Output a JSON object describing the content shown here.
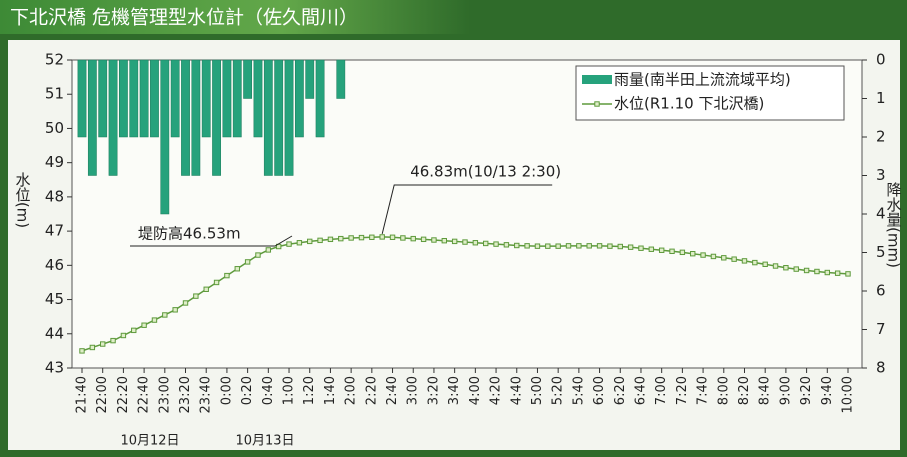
{
  "chart_data": {
    "type": "bar-line",
    "title": "下北沢橋 危機管理型水位計（佐久間川）",
    "y_label": "水位(m)",
    "y2_label": "降水量(mm)",
    "categories": [
      "21:40",
      null,
      "22:00",
      null,
      "22:20",
      null,
      "22:40",
      null,
      "23:00",
      null,
      "23:20",
      null,
      "23:40",
      null,
      "0:00",
      null,
      "0:20",
      null,
      "0:40",
      null,
      "1:00",
      null,
      "1:20",
      null,
      "1:40",
      null,
      "2:00",
      null,
      "2:20",
      null,
      "2:40",
      null,
      "3:00",
      null,
      "3:20",
      null,
      "3:40",
      null,
      "4:00",
      null,
      "4:20",
      null,
      "4:40",
      null,
      "5:00",
      null,
      "5:20",
      null,
      "5:40",
      null,
      "6:00",
      null,
      "6:20",
      null,
      "6:40",
      null,
      "7:00",
      null,
      "7:20",
      null,
      "7:40",
      null,
      "8:00",
      null,
      "8:20",
      null,
      "8:40",
      null,
      "9:00",
      null,
      "9:20",
      null,
      "9:40",
      null,
      "10:00"
    ],
    "date_labels": [
      "10月12日",
      "10月13日"
    ],
    "series": [
      {
        "name": "雨量(南半田上流流域平均)",
        "type": "bar",
        "axis": "y2",
        "color": "#26a27c",
        "values": [
          2,
          3,
          2,
          3,
          2,
          2,
          2,
          2,
          4,
          2,
          3,
          3,
          2,
          3,
          2,
          2,
          1,
          2,
          3,
          3,
          3,
          2,
          1,
          2,
          0,
          1,
          0,
          0,
          0,
          0,
          0,
          0,
          0,
          0,
          0,
          0,
          0,
          0,
          0,
          0,
          0,
          0,
          0,
          0,
          0,
          0,
          0,
          0,
          0,
          0,
          0,
          0,
          0,
          0,
          0,
          0,
          0,
          0,
          0,
          0,
          0,
          0,
          0,
          0,
          0,
          0,
          0,
          0,
          0,
          0,
          0,
          0,
          0,
          0,
          0
        ]
      },
      {
        "name": "水位(R1.10 下北沢橋)",
        "type": "line",
        "color": "#5e9a3c",
        "values": [
          43.5,
          43.6,
          43.7,
          43.8,
          43.95,
          44.1,
          44.25,
          44.4,
          44.55,
          44.7,
          44.9,
          45.1,
          45.3,
          45.5,
          45.7,
          45.9,
          46.1,
          46.3,
          46.45,
          46.55,
          46.62,
          46.66,
          46.7,
          46.73,
          46.76,
          46.78,
          46.8,
          46.81,
          46.82,
          46.83,
          46.82,
          46.8,
          46.78,
          46.76,
          46.74,
          46.72,
          46.7,
          46.68,
          46.66,
          46.64,
          46.62,
          46.6,
          46.58,
          46.57,
          46.56,
          46.56,
          46.56,
          46.57,
          46.57,
          46.57,
          46.57,
          46.56,
          46.55,
          46.53,
          46.5,
          46.47,
          46.44,
          46.41,
          46.38,
          46.34,
          46.3,
          46.26,
          46.22,
          46.18,
          46.13,
          46.08,
          46.03,
          45.98,
          45.93,
          45.89,
          45.85,
          45.82,
          45.79,
          45.77,
          45.75
        ]
      }
    ],
    "ylim": [
      43,
      52
    ],
    "yticks": [
      43,
      44,
      45,
      46,
      47,
      48,
      49,
      50,
      51,
      52
    ],
    "y2lim": [
      0,
      8
    ],
    "y2ticks": [
      0,
      1,
      2,
      3,
      4,
      5,
      6,
      7,
      8
    ],
    "y2_inverted": true,
    "legend": "upper right",
    "annotations": [
      "46.83m(10/13 2:30)",
      "堤防高46.53m"
    ]
  }
}
